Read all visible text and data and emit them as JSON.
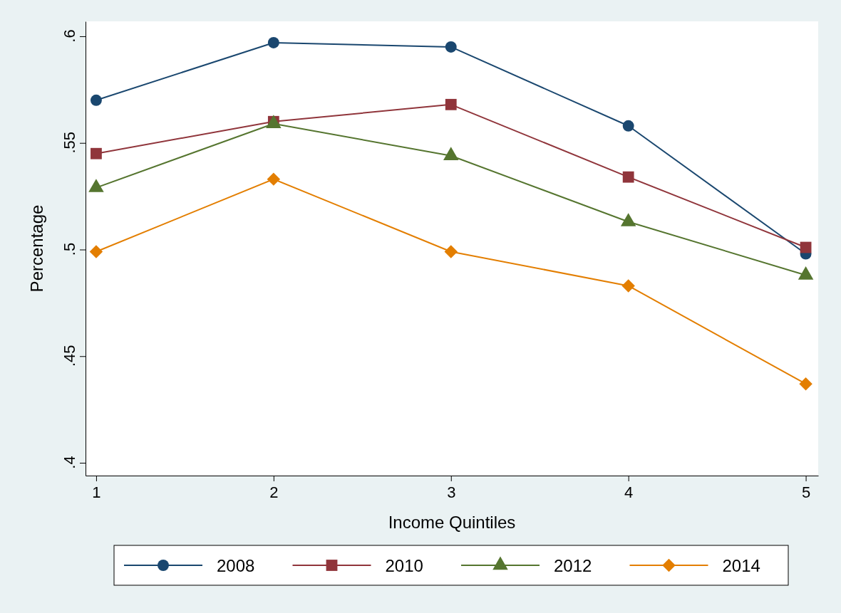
{
  "chart_data": {
    "type": "line",
    "xlabel": "Income Quintiles",
    "ylabel": "Percentage",
    "x": [
      1,
      2,
      3,
      4,
      5
    ],
    "xlim": [
      0.94,
      5.07
    ],
    "xticks": [
      1,
      2,
      3,
      4,
      5
    ],
    "ylim": [
      0.394,
      0.607
    ],
    "yticks": [
      {
        "value": 0.4,
        "label": ".4"
      },
      {
        "value": 0.45,
        "label": ".45"
      },
      {
        "value": 0.5,
        "label": ".5"
      },
      {
        "value": 0.55,
        "label": ".55"
      },
      {
        "value": 0.6,
        "label": ".6"
      }
    ],
    "legend": "bottom",
    "grid": false,
    "line_style": "solid",
    "series": [
      {
        "name": "2008",
        "color": "#1a476f",
        "marker": "circle",
        "values": [
          0.57,
          0.597,
          0.595,
          0.558,
          0.498
        ]
      },
      {
        "name": "2010",
        "color": "#90353b",
        "marker": "square",
        "values": [
          0.545,
          0.56,
          0.568,
          0.534,
          0.501
        ]
      },
      {
        "name": "2012",
        "color": "#55752f",
        "marker": "triangle",
        "values": [
          0.529,
          0.559,
          0.544,
          0.513,
          0.488
        ]
      },
      {
        "name": "2014",
        "color": "#e37e00",
        "marker": "diamond",
        "values": [
          0.499,
          0.533,
          0.499,
          0.483,
          0.437
        ]
      }
    ]
  }
}
